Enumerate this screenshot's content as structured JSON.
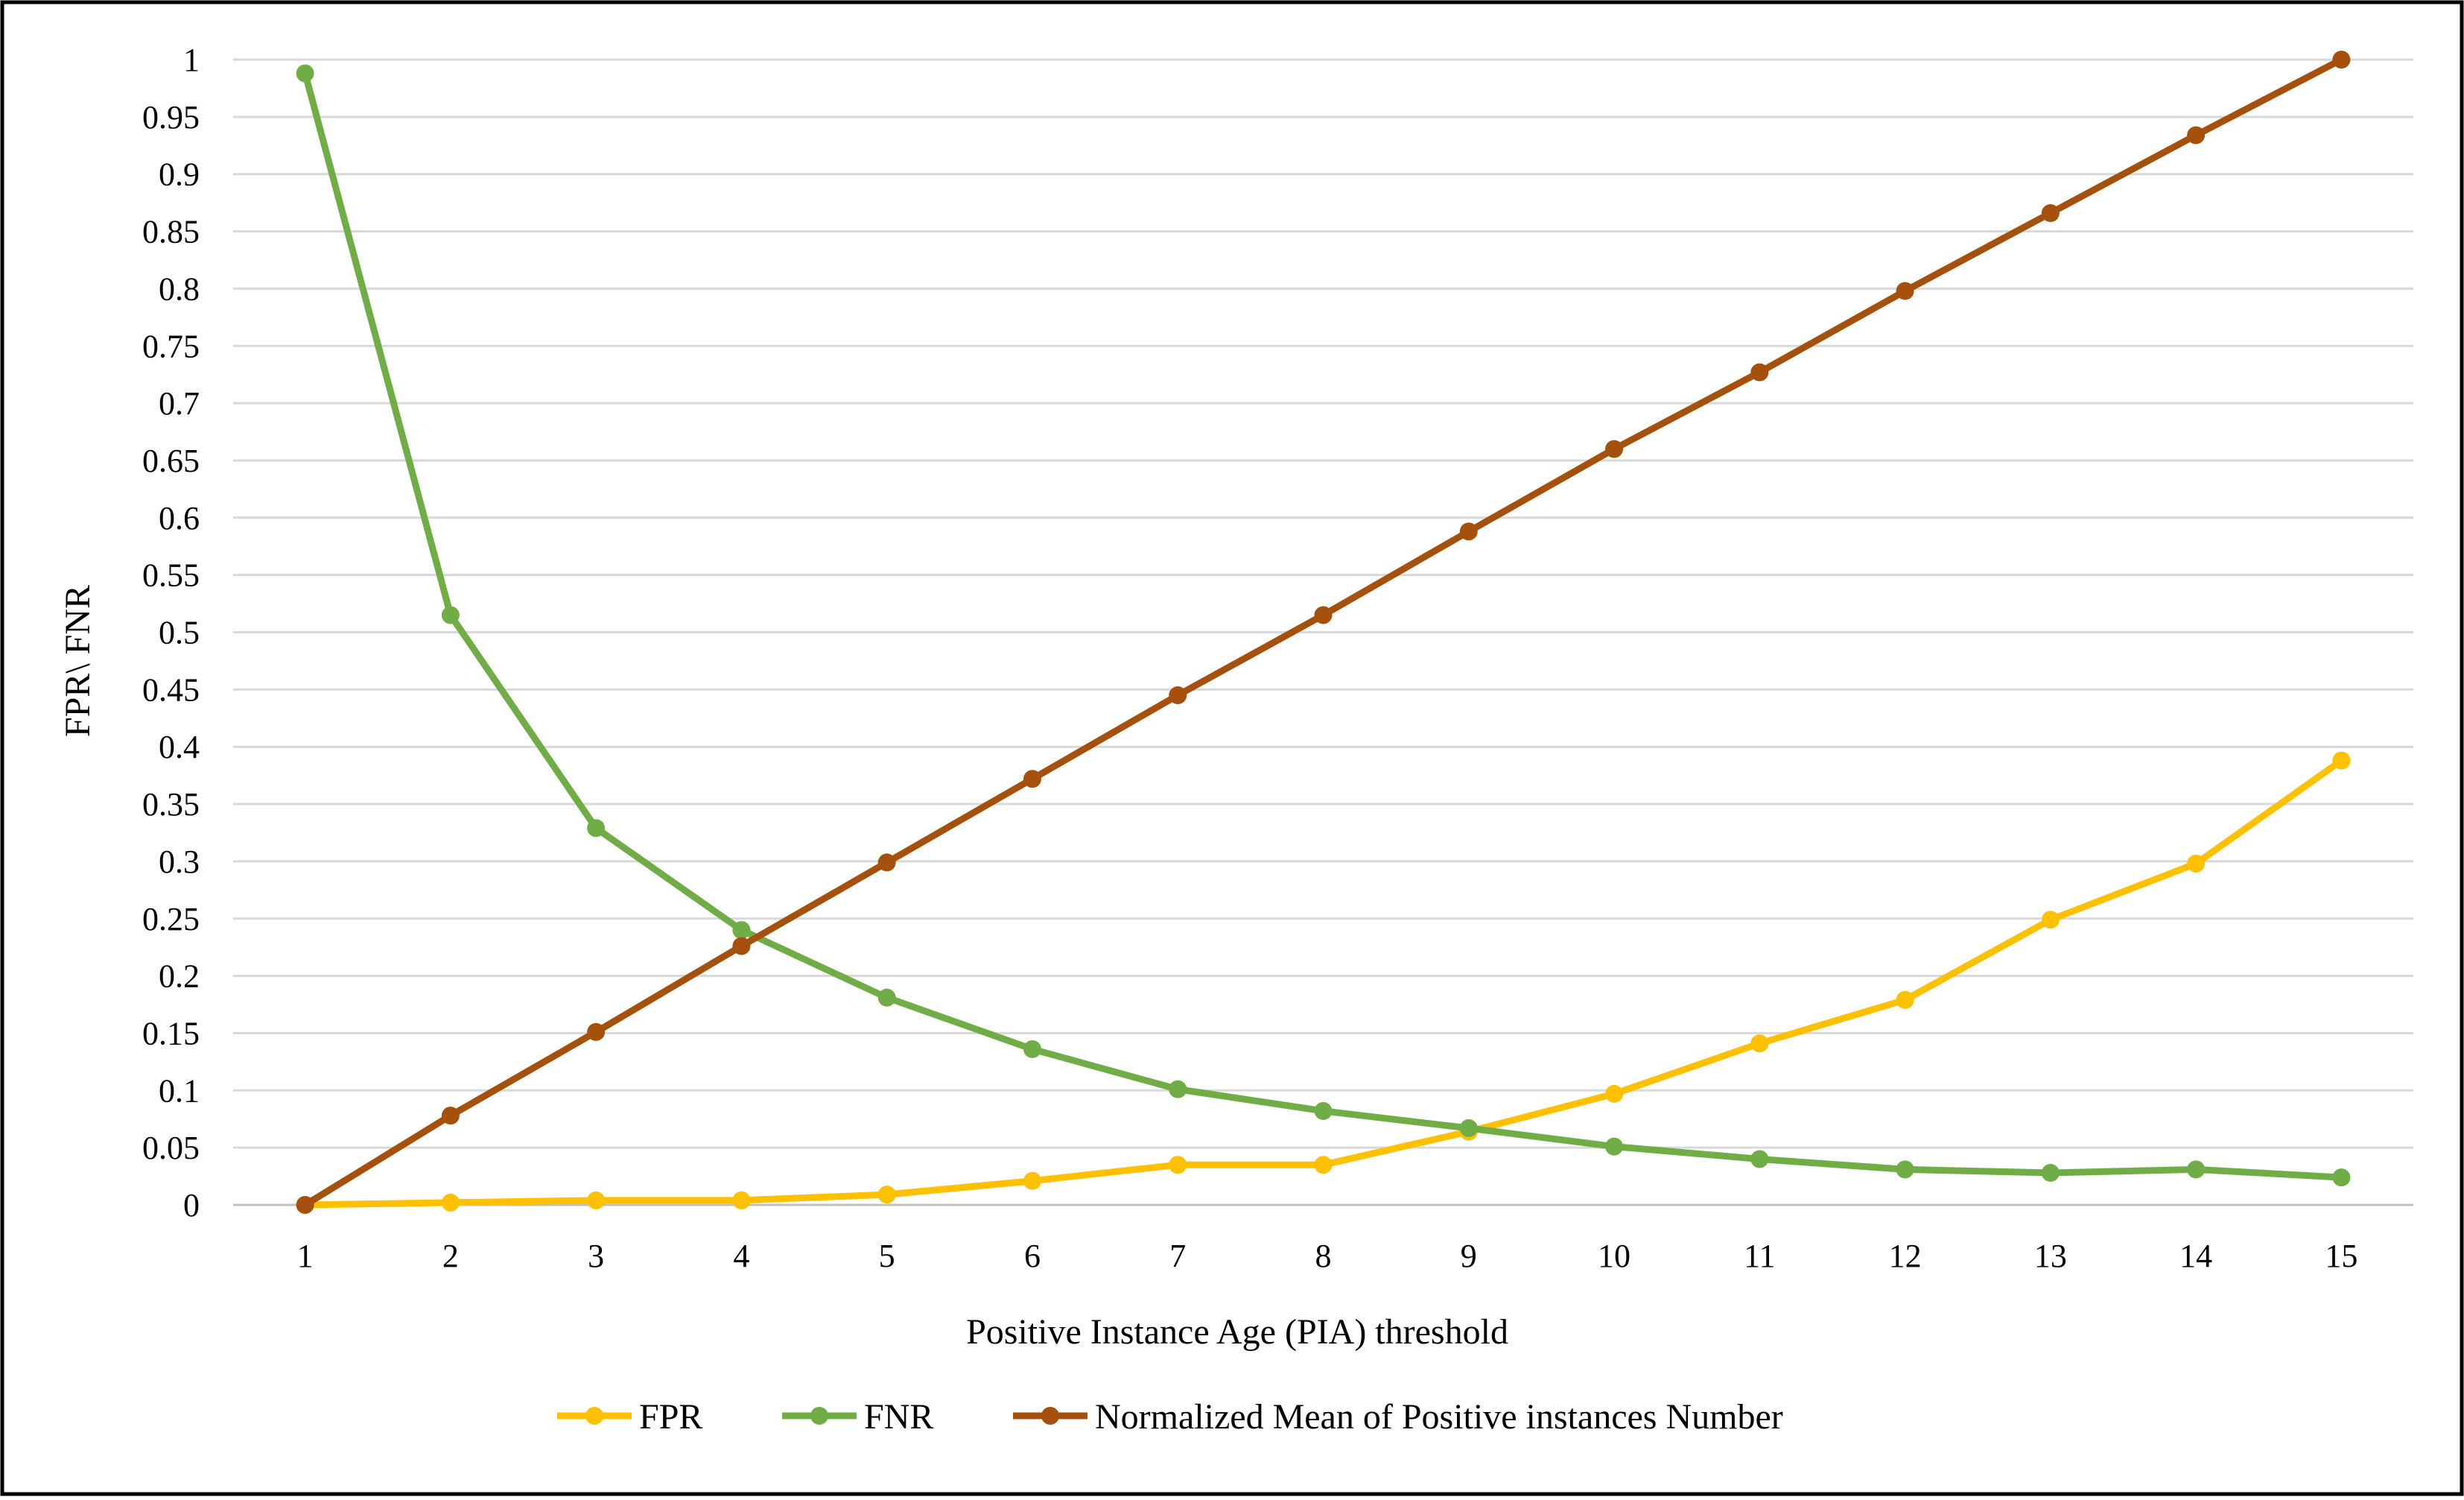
{
  "chart_data": {
    "type": "line",
    "title": "",
    "xlabel": "Positive Instance Age (PIA) threshold",
    "ylabel": "FPR\\ FNR",
    "x": [
      1,
      2,
      3,
      4,
      5,
      6,
      7,
      8,
      9,
      10,
      11,
      12,
      13,
      14,
      15
    ],
    "ylim": [
      0,
      1
    ],
    "yticks": [
      "0",
      "0.05",
      "0.1",
      "0.15",
      "0.2",
      "0.25",
      "0.3",
      "0.35",
      "0.4",
      "0.45",
      "0.5",
      "0.55",
      "0.6",
      "0.65",
      "0.7",
      "0.75",
      "0.8",
      "0.85",
      "0.9",
      "0.95",
      "1"
    ],
    "grid": "horizontal",
    "legend_position": "bottom",
    "series": [
      {
        "name": "FPR",
        "color": "#FFC000",
        "values": [
          0.0,
          0.002,
          0.004,
          0.004,
          0.009,
          0.021,
          0.035,
          0.035,
          0.064,
          0.097,
          0.141,
          0.179,
          0.249,
          0.298,
          0.388
        ]
      },
      {
        "name": "FNR",
        "color": "#70AD47",
        "values": [
          0.988,
          0.515,
          0.329,
          0.24,
          0.181,
          0.136,
          0.101,
          0.082,
          0.067,
          0.051,
          0.04,
          0.031,
          0.028,
          0.031,
          0.024
        ]
      },
      {
        "name": "Normalized Mean of Positive instances Number",
        "color": "#A5510D",
        "values": [
          0.0,
          0.078,
          0.151,
          0.226,
          0.299,
          0.372,
          0.445,
          0.515,
          0.588,
          0.66,
          0.727,
          0.798,
          0.866,
          0.934,
          1.0
        ]
      }
    ]
  }
}
